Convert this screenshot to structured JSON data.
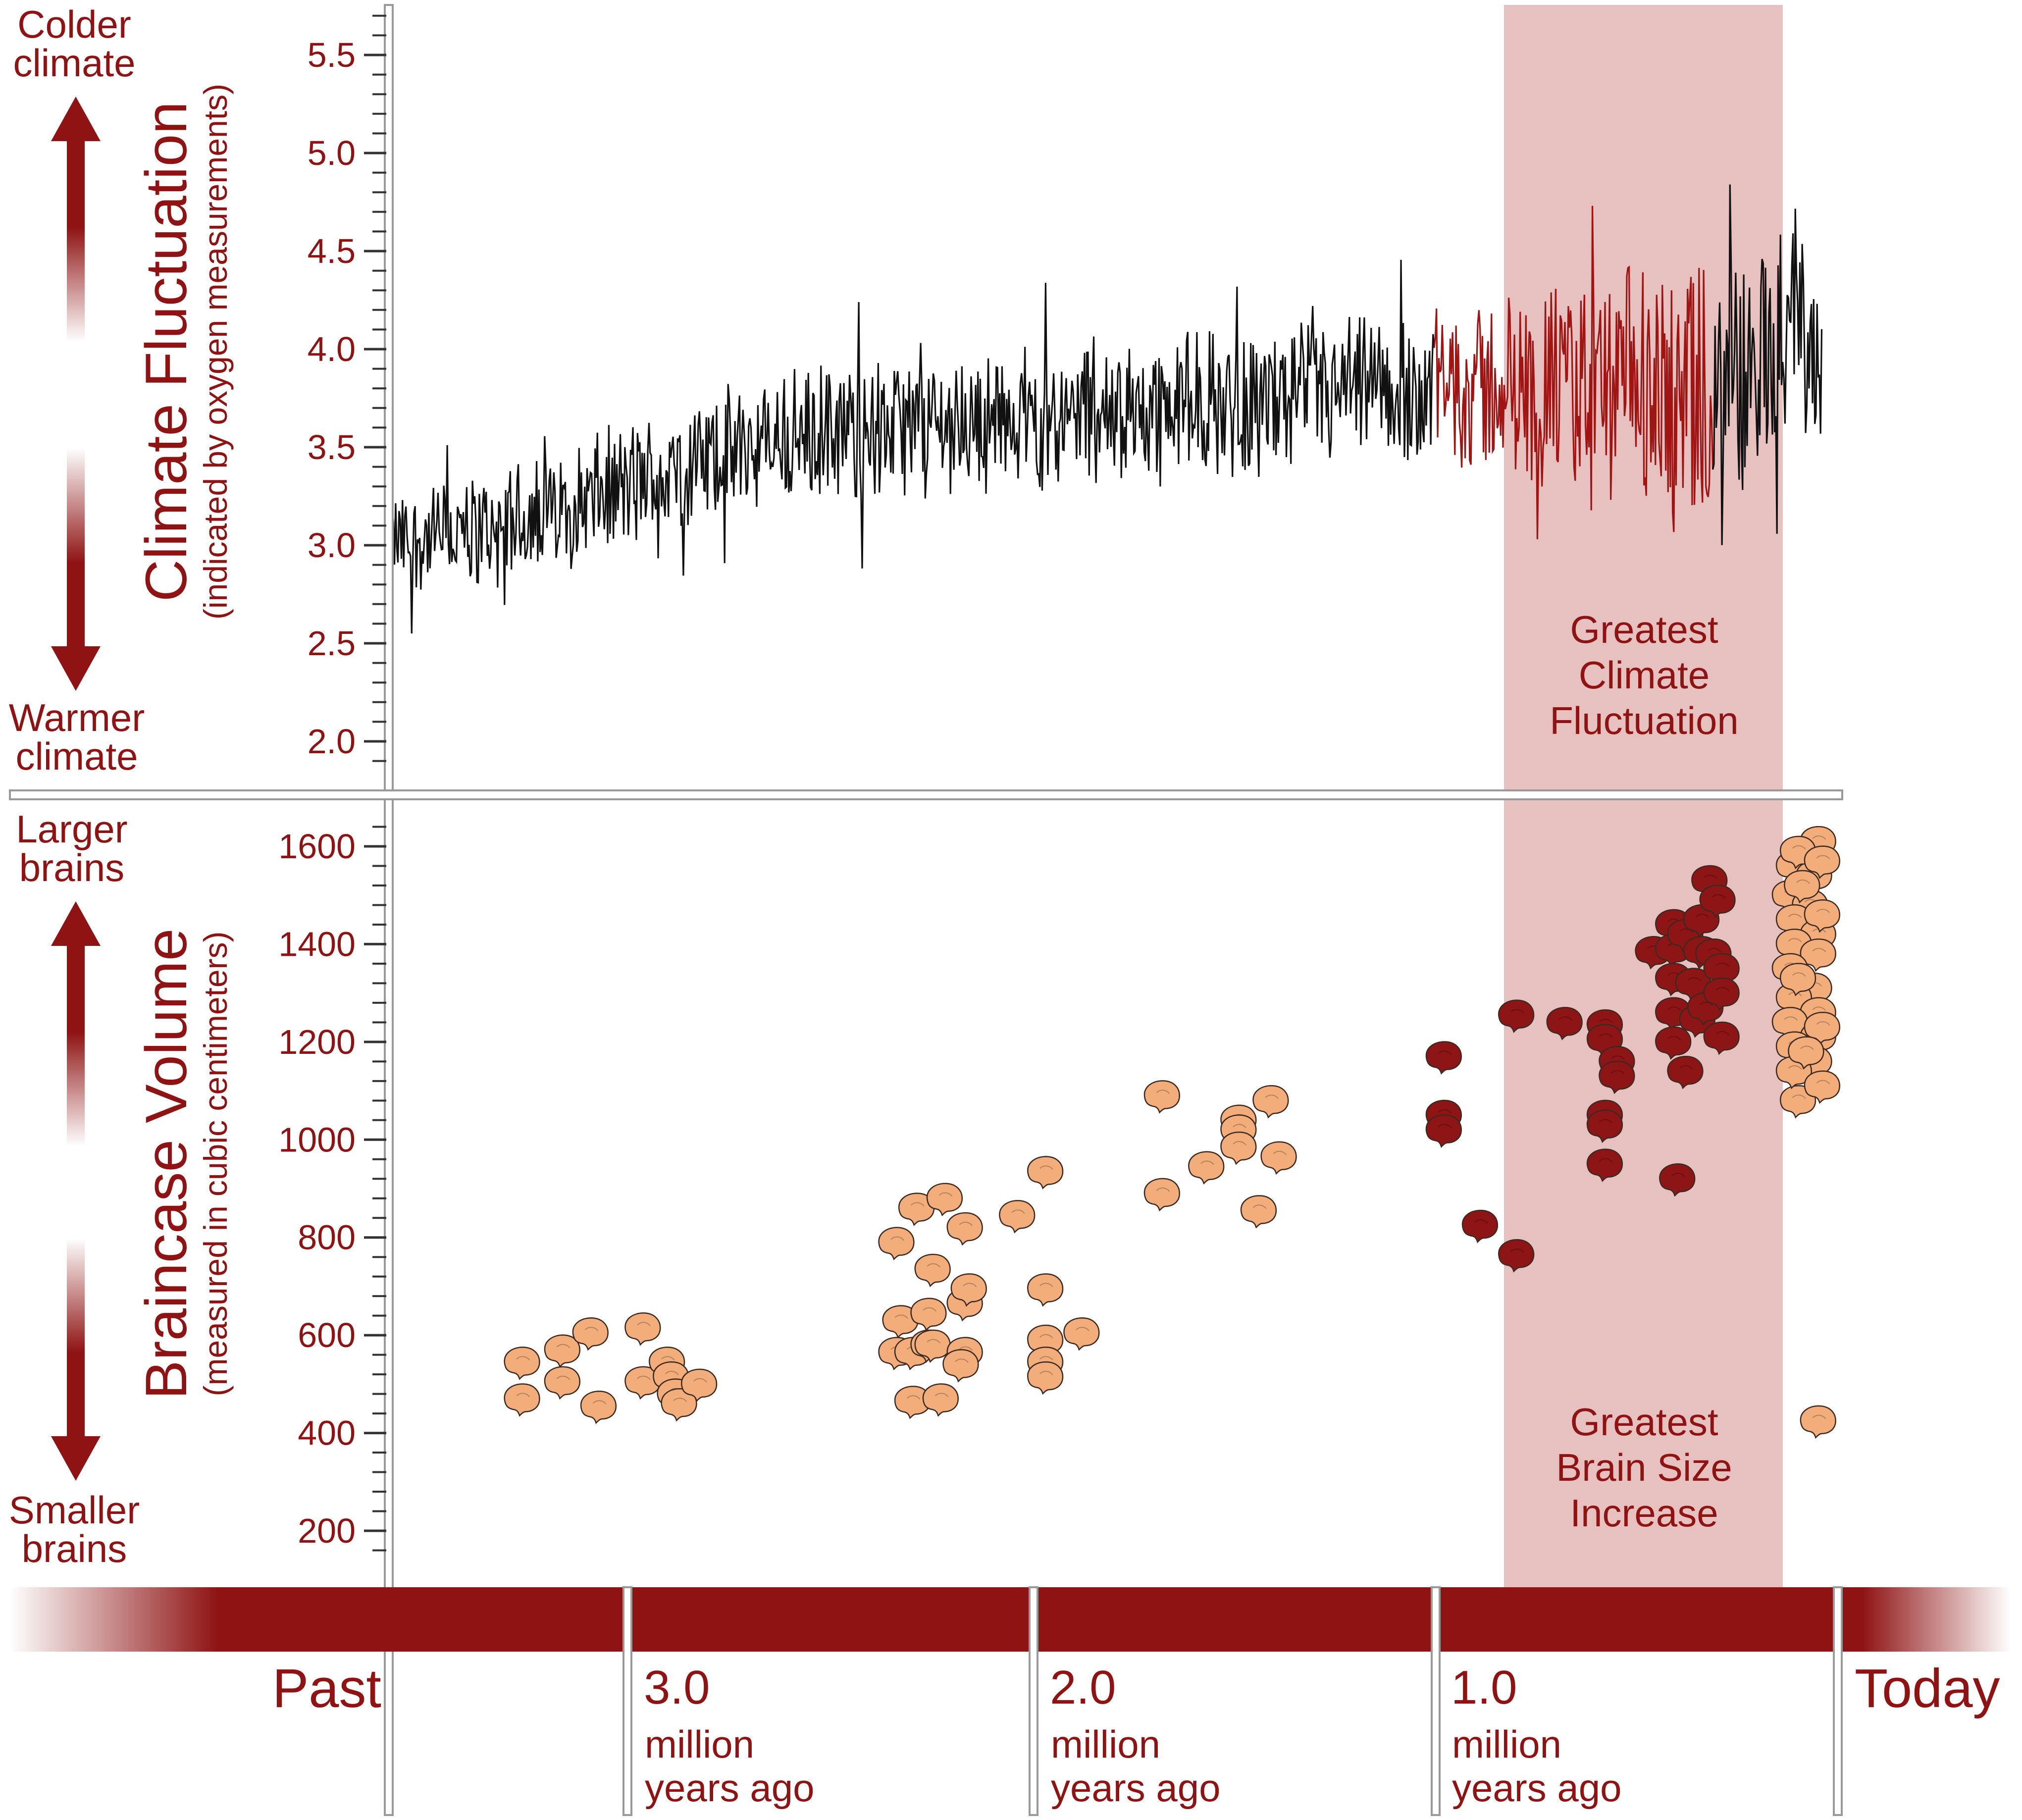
{
  "colors": {
    "accent": "#8f1313",
    "band": "#e6c1bf",
    "brain_orange": "#f2ad7a",
    "brain_dark": "#8e1515",
    "axis_gray": "#9a9a9a",
    "climate_line": "#111111"
  },
  "labels": {
    "colder": "Colder climate",
    "warmer": "Warmer climate",
    "larger": "Larger brains",
    "smaller": "Smaller brains",
    "climate_title": "Climate Fluctuation",
    "climate_sub": "(indicated by oxygen measurements)",
    "brain_title": "Braincase Volume",
    "brain_sub": "(measured in cubic centimeters)",
    "band_top": "Greatest Climate Fluctuation",
    "band_bottom": "Greatest Brain Size Increase"
  },
  "timeline": {
    "past": "Past",
    "today": "Today",
    "marks": [
      {
        "num": "3.0",
        "unit": "million",
        "unit2": "years ago"
      },
      {
        "num": "2.0",
        "unit": "million",
        "unit2": "years ago"
      },
      {
        "num": "1.0",
        "unit": "million",
        "unit2": "years ago"
      }
    ]
  },
  "chart_data": [
    {
      "type": "line",
      "title": "Climate Fluctuation",
      "ylabel": "Climate Fluctuation (indicated by oxygen measurements)",
      "xlabel": "million years ago",
      "x_range": [
        3.6,
        0
      ],
      "ylim": [
        1.8,
        5.7
      ],
      "yticks": [
        2.0,
        2.5,
        3.0,
        3.5,
        4.0,
        4.5,
        5.0,
        5.5
      ],
      "yticklabels": [
        "2.0",
        "2.5",
        "3.0",
        "3.5",
        "4.0",
        "4.5",
        "5.0",
        "5.5"
      ],
      "highlight_x": [
        1.0,
        0.31
      ],
      "highlight_label": "Greatest Climate Fluctuation",
      "trend": [
        [
          3.6,
          3.0
        ],
        [
          3.3,
          3.1
        ],
        [
          3.0,
          3.3
        ],
        [
          2.7,
          3.5
        ],
        [
          2.4,
          3.6
        ],
        [
          2.0,
          3.65
        ],
        [
          1.7,
          3.7
        ],
        [
          1.3,
          3.75
        ],
        [
          1.0,
          3.8
        ],
        [
          0.5,
          3.8
        ],
        [
          0.31,
          3.6
        ],
        [
          0.1,
          4.2
        ],
        [
          0.04,
          3.9
        ]
      ],
      "amplitude": [
        [
          3.6,
          0.3
        ],
        [
          3.0,
          0.38
        ],
        [
          2.0,
          0.42
        ],
        [
          1.0,
          0.45
        ],
        [
          0.31,
          0.85
        ],
        [
          0.05,
          0.5
        ]
      ]
    },
    {
      "type": "scatter",
      "title": "Braincase Volume",
      "ylabel": "Braincase Volume (measured in cubic centimeters)",
      "xlabel": "million years ago",
      "x_range": [
        3.6,
        0
      ],
      "ylim": [
        120,
        1720
      ],
      "yticks": [
        200,
        400,
        600,
        800,
        1000,
        1200,
        1400,
        1600
      ],
      "yticklabels": [
        "200",
        "400",
        "600",
        "800",
        "1000",
        "1200",
        "1400",
        "1600"
      ],
      "highlight_x": [
        1.0,
        0.31
      ],
      "highlight_label": "Greatest Brain Size Increase",
      "series": [
        {
          "name": "orange",
          "points": [
            [
              3.27,
              545
            ],
            [
              3.27,
              470
            ],
            [
              3.17,
              570
            ],
            [
              3.17,
              505
            ],
            [
              3.1,
              605
            ],
            [
              3.08,
              455
            ],
            [
              2.97,
              615
            ],
            [
              2.97,
              505
            ],
            [
              2.91,
              545
            ],
            [
              2.9,
              515
            ],
            [
              2.89,
              480
            ],
            [
              2.88,
              460
            ],
            [
              2.83,
              500
            ],
            [
              2.34,
              790
            ],
            [
              2.33,
              630
            ],
            [
              2.34,
              565
            ],
            [
              2.3,
              565
            ],
            [
              2.3,
              465
            ],
            [
              2.29,
              860
            ],
            [
              2.26,
              580
            ],
            [
              2.26,
              645
            ],
            [
              2.25,
              735
            ],
            [
              2.25,
              580
            ],
            [
              2.23,
              470
            ],
            [
              2.22,
              880
            ],
            [
              2.17,
              820
            ],
            [
              2.17,
              665
            ],
            [
              2.17,
              565
            ],
            [
              2.16,
              695
            ],
            [
              2.18,
              540
            ],
            [
              2.04,
              845
            ],
            [
              1.97,
              935
            ],
            [
              1.97,
              695
            ],
            [
              1.97,
              590
            ],
            [
              1.97,
              545
            ],
            [
              1.97,
              515
            ],
            [
              1.88,
              605
            ],
            [
              1.68,
              1090
            ],
            [
              1.68,
              890
            ],
            [
              1.57,
              945
            ],
            [
              1.49,
              1040
            ],
            [
              1.49,
              1020
            ],
            [
              1.49,
              985
            ],
            [
              1.44,
              855
            ],
            [
              1.41,
              1080
            ],
            [
              1.39,
              965
            ],
            [
              0.05,
              425
            ],
            [
              0.1,
              1080
            ],
            [
              0.05,
              1610
            ],
            [
              0.11,
              1560
            ],
            [
              0.06,
              1540
            ],
            [
              0.12,
              1500
            ],
            [
              0.07,
              1480
            ],
            [
              0.11,
              1450
            ],
            [
              0.05,
              1420
            ],
            [
              0.11,
              1400
            ],
            [
              0.05,
              1380
            ],
            [
              0.12,
              1350
            ],
            [
              0.06,
              1310
            ],
            [
              0.11,
              1290
            ],
            [
              0.05,
              1260
            ],
            [
              0.12,
              1240
            ],
            [
              0.05,
              1210
            ],
            [
              0.11,
              1190
            ],
            [
              0.06,
              1160
            ],
            [
              0.11,
              1140
            ],
            [
              0.04,
              1110
            ],
            [
              0.1,
              1590
            ],
            [
              0.04,
              1570
            ],
            [
              0.09,
              1520
            ],
            [
              0.04,
              1460
            ],
            [
              0.1,
              1330
            ],
            [
              0.04,
              1230
            ],
            [
              0.08,
              1180
            ]
          ]
        },
        {
          "name": "dark",
          "points": [
            [
              0.98,
              1170
            ],
            [
              0.98,
              1050
            ],
            [
              0.98,
              1020
            ],
            [
              0.89,
              825
            ],
            [
              0.8,
              1255
            ],
            [
              0.8,
              765
            ],
            [
              0.68,
              1240
            ],
            [
              0.58,
              1235
            ],
            [
              0.58,
              1205
            ],
            [
              0.58,
              1050
            ],
            [
              0.58,
              1030
            ],
            [
              0.58,
              950
            ],
            [
              0.55,
              1160
            ],
            [
              0.55,
              1130
            ],
            [
              0.46,
              1385
            ],
            [
              0.41,
              1440
            ],
            [
              0.41,
              1390
            ],
            [
              0.41,
              1330
            ],
            [
              0.41,
              1260
            ],
            [
              0.41,
              1200
            ],
            [
              0.4,
              920
            ],
            [
              0.38,
              1420
            ],
            [
              0.38,
              1140
            ],
            [
              0.36,
              1320
            ],
            [
              0.35,
              1245
            ],
            [
              0.34,
              1385
            ],
            [
              0.34,
              1450
            ],
            [
              0.33,
              1270
            ],
            [
              0.32,
              1530
            ],
            [
              0.31,
              1380
            ],
            [
              0.3,
              1490
            ],
            [
              0.29,
              1350
            ],
            [
              0.29,
              1300
            ],
            [
              0.29,
              1210
            ]
          ]
        }
      ]
    }
  ]
}
